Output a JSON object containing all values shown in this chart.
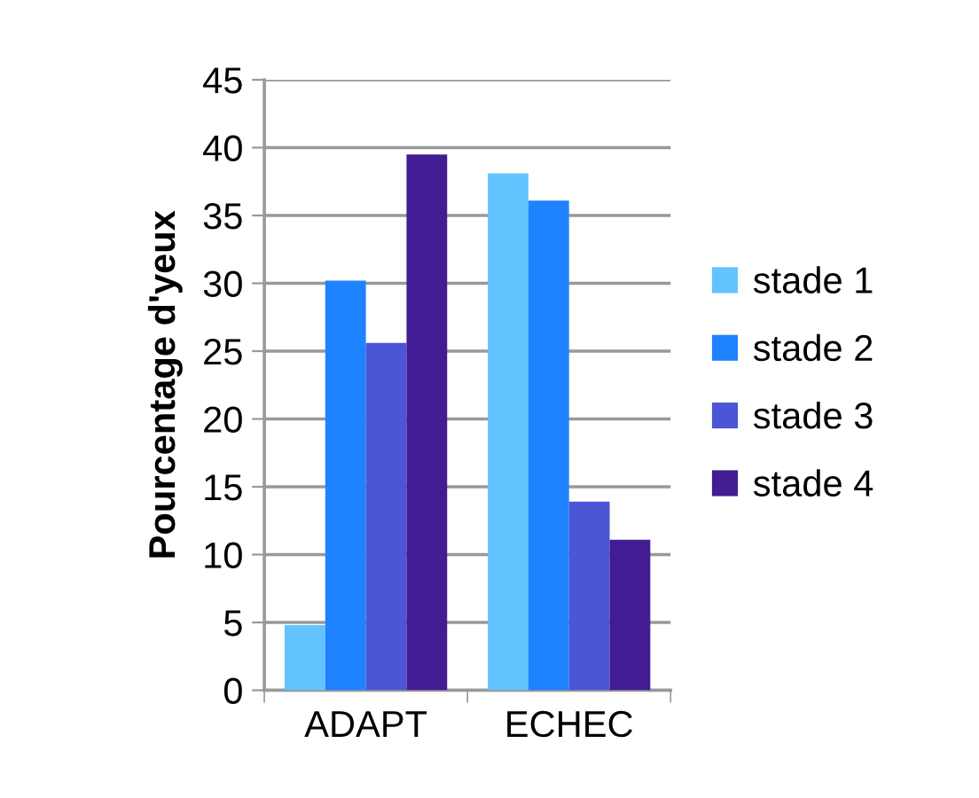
{
  "chart_data": {
    "type": "bar",
    "ylabel": "Pourcentage d'yeux",
    "categories": [
      "ADAPT",
      "ECHEC"
    ],
    "series": [
      {
        "name": "stade 1",
        "color": "#62c3ff",
        "values": [
          4.8,
          38.1
        ]
      },
      {
        "name": "stade 2",
        "color": "#1f82ff",
        "values": [
          30.2,
          36.1
        ]
      },
      {
        "name": "stade 3",
        "color": "#4b55d6",
        "values": [
          25.6,
          13.9
        ]
      },
      {
        "name": "stade 4",
        "color": "#421c93",
        "values": [
          39.5,
          11.1
        ]
      }
    ],
    "ylim": [
      0,
      45
    ],
    "yticks": [
      0,
      5,
      10,
      15,
      20,
      25,
      30,
      35,
      40,
      45
    ],
    "grid": "y",
    "legend": "right"
  }
}
